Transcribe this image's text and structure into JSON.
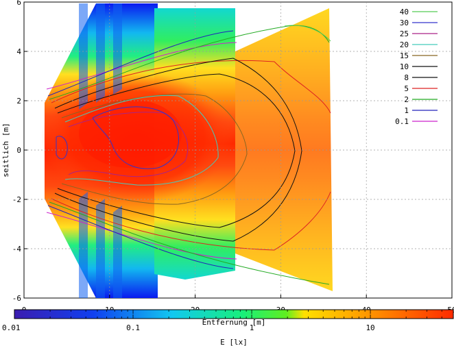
{
  "chart_data": {
    "type": "heatmap",
    "title": "",
    "xlabel": "Entfernung [m]",
    "ylabel": "seitlich [m]",
    "xlim": [
      0,
      50
    ],
    "ylim": [
      -6,
      6
    ],
    "xticks": [
      "0",
      "10",
      "20",
      "30",
      "40",
      "50"
    ],
    "yticks": [
      "-6",
      "-4",
      "-2",
      "0",
      "2",
      "4",
      "6"
    ],
    "grid": true,
    "legend_position": "top-right",
    "colorbar": {
      "label": "E [lx]",
      "scale": "log",
      "range": [
        0.01,
        50
      ],
      "ticks": [
        "0.01",
        "0.1",
        "1",
        "10"
      ]
    },
    "contour_levels": [
      {
        "label": "40",
        "value": 40,
        "color": "#55cc55"
      },
      {
        "label": "30",
        "value": 30,
        "color": "#3333cc"
      },
      {
        "label": "25",
        "value": 25,
        "color": "#aa2288"
      },
      {
        "label": "20",
        "value": 20,
        "color": "#44ccbb"
      },
      {
        "label": "15",
        "value": 15,
        "color": "#886622"
      },
      {
        "label": "10",
        "value": 10,
        "color": "#111111"
      },
      {
        "label": "8",
        "value": 8,
        "color": "#111111"
      },
      {
        "label": "5",
        "value": 5,
        "color": "#dd2222"
      },
      {
        "label": "2",
        "value": 2,
        "color": "#22aa22"
      },
      {
        "label": "1",
        "value": 1,
        "color": "#2222bb"
      },
      {
        "label": "0.1",
        "value": 0.1,
        "color": "#cc22cc"
      }
    ]
  }
}
